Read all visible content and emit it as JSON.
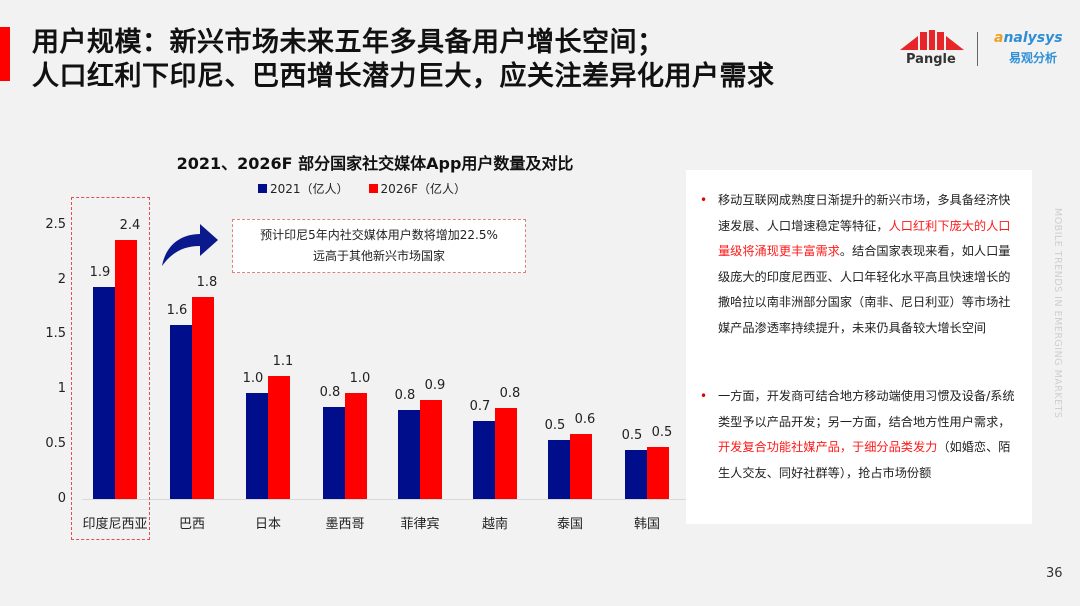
{
  "header": {
    "title_line1": "用户规模：新兴市场未来五年多具备用户增长空间；",
    "title_line2": "人口红利下印尼、巴西增长潜力巨大，应关注差异化用户需求",
    "accent_color": "#ff0000"
  },
  "logos": {
    "pangle": "Pangle",
    "analysys_prefix": "a",
    "analysys_rest": "nalysys",
    "analysys_cn": "易观分析"
  },
  "chart": {
    "title": "2021、2026F 部分国家社交媒体App用户数量及对比",
    "legend": [
      {
        "label": "2021（亿人）",
        "color": "#000e8c"
      },
      {
        "label": "2026F（亿人）",
        "color": "#ff0000"
      }
    ],
    "y_ticks": [
      "0",
      "0.5",
      "1",
      "1.5",
      "2",
      "2.5"
    ],
    "categories": [
      "印度尼西亚",
      "巴西",
      "日本",
      "墨西哥",
      "菲律宾",
      "越南",
      "泰国",
      "韩国"
    ],
    "labels_2021": [
      "1.9",
      "1.6",
      "1.0",
      "0.8",
      "0.8",
      "0.7",
      "0.5",
      "0.5"
    ],
    "labels_2026": [
      "2.4",
      "1.8",
      "1.1",
      "1.0",
      "0.9",
      "0.8",
      "0.6",
      "0.5"
    ],
    "callout_line1": "预计印尼5年内社交媒体用户数将增加22.5%",
    "callout_line2": "远高于其他新兴市场国家"
  },
  "chart_data": {
    "type": "bar",
    "title": "2021、2026F 部分国家社交媒体App用户数量及对比",
    "xlabel": "",
    "ylabel": "",
    "ylim": [
      0,
      2.5
    ],
    "y_ticks": [
      0,
      0.5,
      1,
      1.5,
      2,
      2.5
    ],
    "grid": false,
    "legend_position": "top",
    "categories": [
      "印度尼西亚",
      "巴西",
      "日本",
      "墨西哥",
      "菲律宾",
      "越南",
      "泰国",
      "韩国"
    ],
    "series": [
      {
        "name": "2021（亿人）",
        "color": "#000e8c",
        "values": [
          1.93,
          1.59,
          0.97,
          0.84,
          0.81,
          0.71,
          0.54,
          0.45
        ]
      },
      {
        "name": "2026F（亿人）",
        "color": "#ff0000",
        "values": [
          2.36,
          1.84,
          1.12,
          0.97,
          0.9,
          0.83,
          0.59,
          0.47
        ]
      }
    ],
    "data_labels": {
      "2021（亿人）": [
        1.9,
        1.6,
        1.0,
        0.8,
        0.8,
        0.7,
        0.5,
        0.5
      ],
      "2026F（亿人）": [
        2.4,
        1.8,
        1.1,
        1.0,
        0.9,
        0.8,
        0.6,
        0.5
      ]
    },
    "annotations": [
      "预计印尼5年内社交媒体用户数将增加22.5%",
      "远高于其他新兴市场国家"
    ],
    "highlight": "印度尼西亚"
  },
  "panel": {
    "bullet1": {
      "part1": "移动互联网成熟度日渐提升的新兴市场，多具备经济快速发展、人口增速稳定等特征，",
      "highlight": "人口红利下庞大的人口量级将涌现更丰富需求",
      "part2": "。结合国家表现来看，如人口量级庞大的印度尼西亚、人口年轻化水平高且快速增长的撒哈拉以南非洲部分国家（南非、尼日利亚）等市场社媒产品渗透率持续提升，未来仍具备较大增长空间"
    },
    "bullet2": {
      "part1": "一方面，开发商可结合地方移动端使用习惯及设备/系统类型予以产品开发；另一方面，结合地方性用户需求，",
      "highlight": "开发复合功能社媒产品，于细分品类发力",
      "part2": "（如婚恋、陌生人交友、同好社群等），抢占市场份额"
    },
    "bullet_marker": "•"
  },
  "side_text": "MOBILE TRENDS IN EMERGING MARKETS",
  "page_number": "36"
}
